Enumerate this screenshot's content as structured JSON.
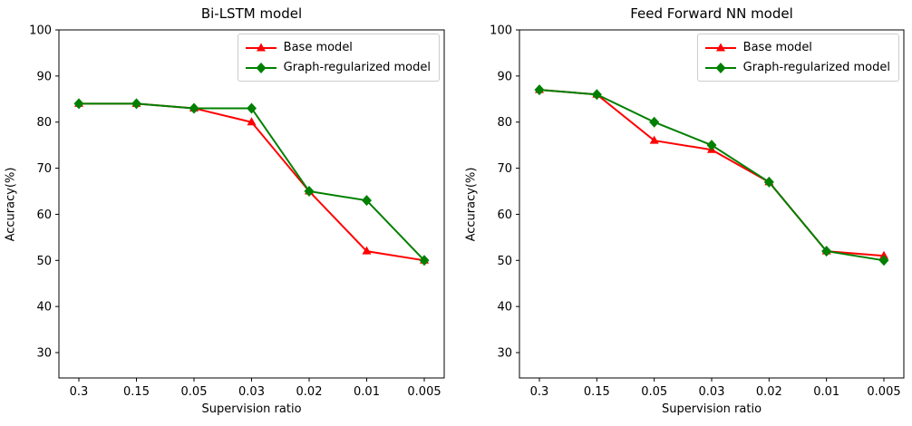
{
  "figure": {
    "background": "#ffffff",
    "spine_color": "#000000",
    "text_color": "#000000",
    "legend_border_color": "#cccccc"
  },
  "chart_data": [
    {
      "type": "line",
      "title": "Bi-LSTM model",
      "xlabel": "Supervision ratio",
      "ylabel": "Accuracy(%)",
      "categories": [
        "0.3",
        "0.15",
        "0.05",
        "0.03",
        "0.02",
        "0.01",
        "0.005"
      ],
      "yticks": [
        30,
        40,
        50,
        60,
        70,
        80,
        90,
        100
      ],
      "ylim": [
        24.5,
        100
      ],
      "grid": false,
      "legend_position": "upper right",
      "series": [
        {
          "name": "Base model",
          "color": "#ff0000",
          "marker": "triangle",
          "values": [
            84,
            84,
            83,
            80,
            65,
            52,
            50
          ]
        },
        {
          "name": "Graph-regularized model",
          "color": "#008000",
          "marker": "diamond",
          "values": [
            84,
            84,
            83,
            83,
            65,
            63,
            50
          ]
        }
      ]
    },
    {
      "type": "line",
      "title": "Feed Forward NN model",
      "xlabel": "Supervision ratio",
      "ylabel": "Accuracy(%)",
      "categories": [
        "0.3",
        "0.15",
        "0.05",
        "0.03",
        "0.02",
        "0.01",
        "0.005"
      ],
      "yticks": [
        30,
        40,
        50,
        60,
        70,
        80,
        90,
        100
      ],
      "ylim": [
        24.5,
        100
      ],
      "grid": false,
      "legend_position": "upper right",
      "series": [
        {
          "name": "Base model",
          "color": "#ff0000",
          "marker": "triangle",
          "values": [
            87,
            86,
            76,
            74,
            67,
            52,
            51
          ]
        },
        {
          "name": "Graph-regularized model",
          "color": "#008000",
          "marker": "diamond",
          "values": [
            87,
            86,
            80,
            75,
            67,
            52,
            50
          ]
        }
      ]
    }
  ]
}
